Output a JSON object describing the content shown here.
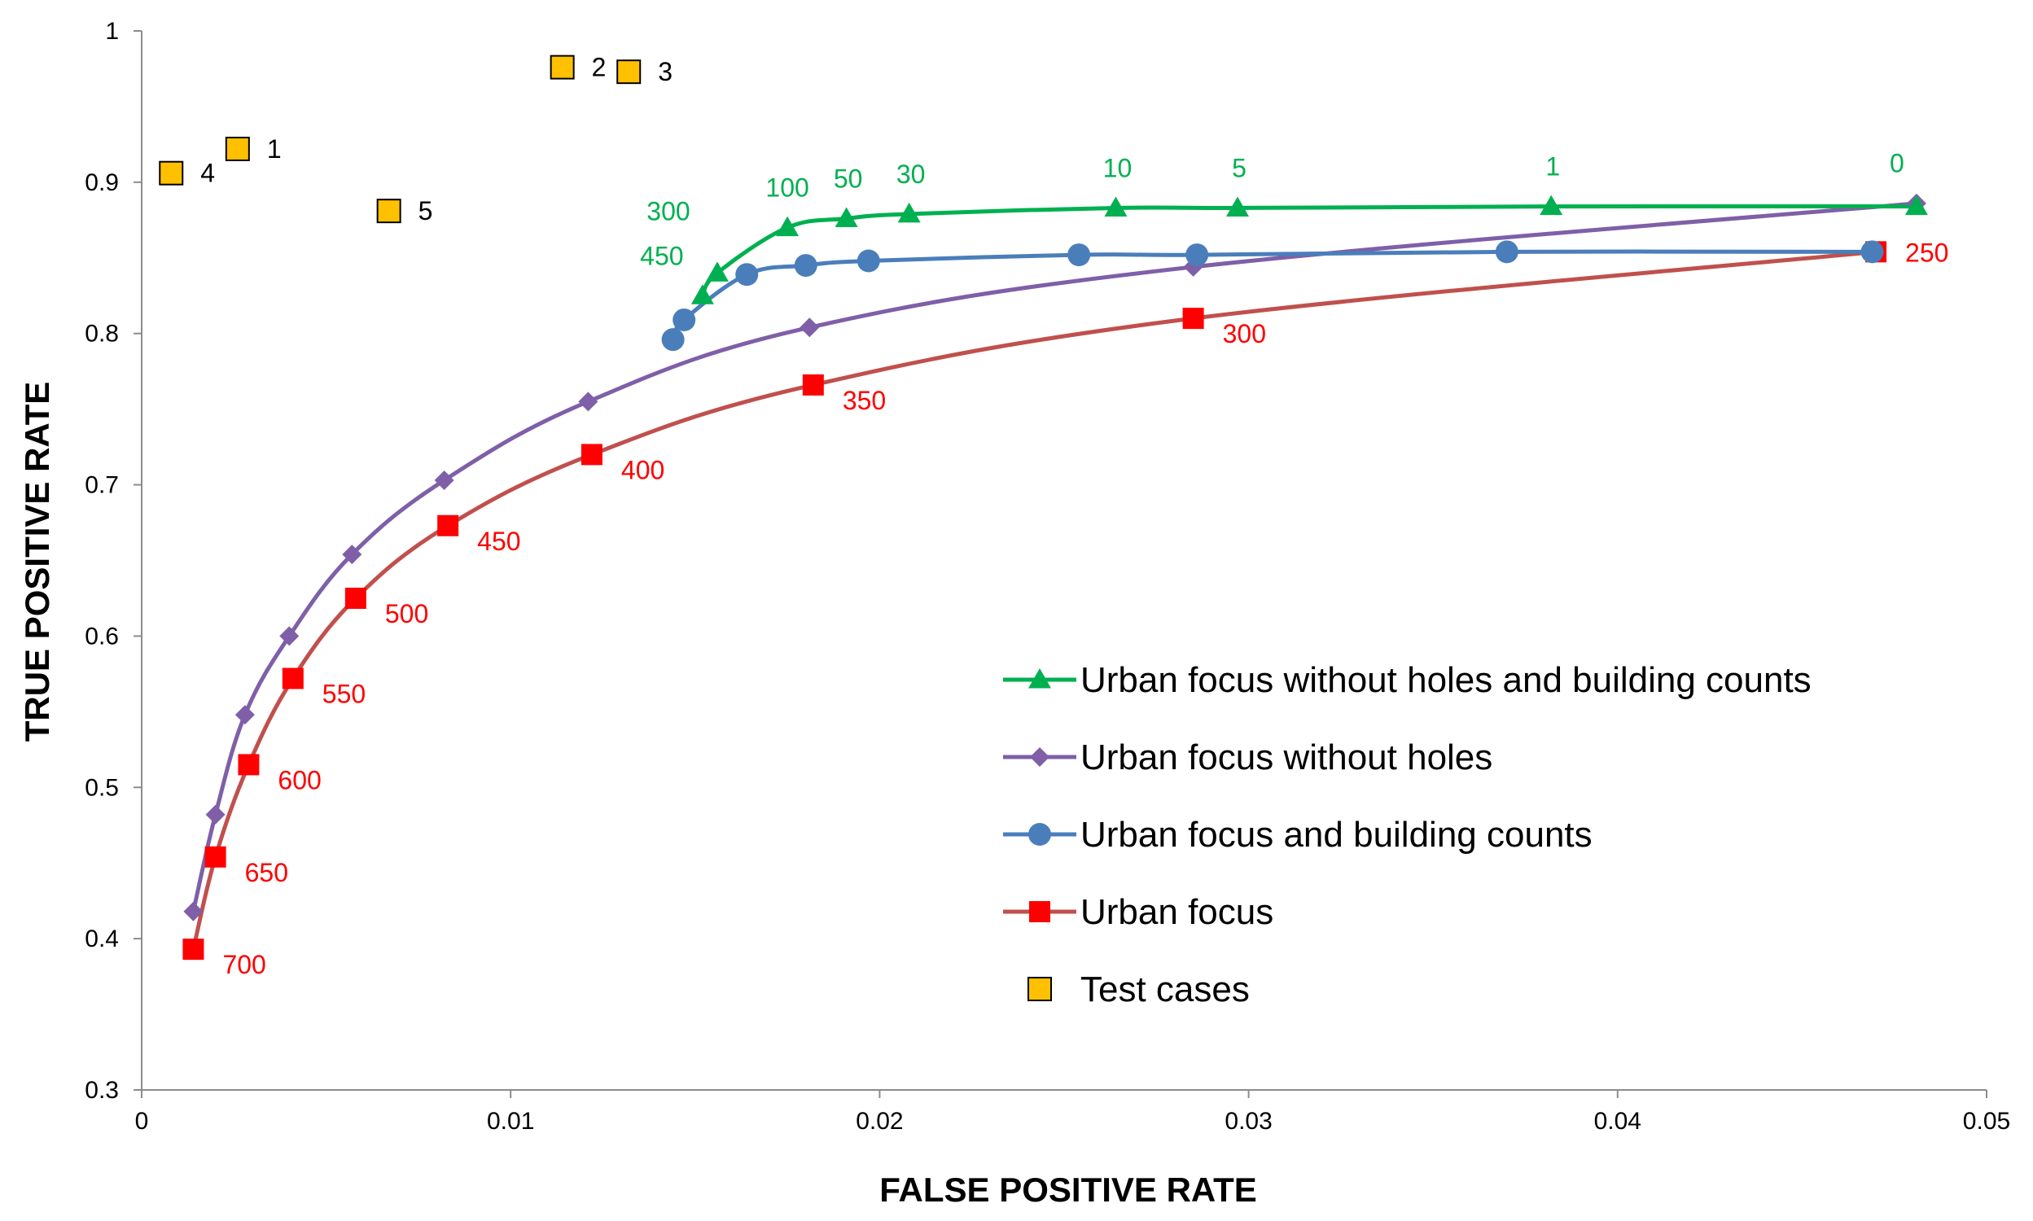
{
  "chart_data": {
    "type": "line",
    "title": "",
    "xlabel": "FALSE POSITIVE RATE",
    "ylabel": "TRUE POSITIVE RATE",
    "xlim": [
      0,
      0.05
    ],
    "ylim": [
      0.3,
      1
    ],
    "x_ticks": [
      0,
      0.01,
      0.02,
      0.03,
      0.04,
      0.05
    ],
    "x_tick_labels": [
      "0",
      "0.01",
      "0.02",
      "0.03",
      "0.04",
      "0.05"
    ],
    "y_ticks": [
      0.3,
      0.4,
      0.5,
      0.6,
      0.7,
      0.8,
      0.9,
      1
    ],
    "y_tick_labels": [
      "0.3",
      "0.4",
      "0.5",
      "0.6",
      "0.7",
      "0.8",
      "0.9",
      "1"
    ],
    "grid": false,
    "legend_position": "bottom-right",
    "series": [
      {
        "name": "Urban focus without holes and building counts",
        "color": "#00b050",
        "marker": "triangle",
        "x": [
          0.0152,
          0.0156,
          0.0175,
          0.0191,
          0.0208,
          0.0264,
          0.0297,
          0.0382,
          0.0481
        ],
        "y": [
          0.825,
          0.84,
          0.87,
          0.876,
          0.879,
          0.883,
          0.883,
          0.884,
          0.884
        ],
        "labels": [
          "450",
          "300",
          "100",
          "50",
          "30",
          "10",
          "5",
          "1",
          "0"
        ]
      },
      {
        "name": "Urban focus without holes",
        "color": "#7f5fa8",
        "marker": "diamond",
        "x": [
          0.0014,
          0.002,
          0.0028,
          0.004,
          0.0057,
          0.0082,
          0.0121,
          0.0181,
          0.0285,
          0.0481
        ],
        "y": [
          0.418,
          0.482,
          0.548,
          0.6,
          0.654,
          0.703,
          0.755,
          0.804,
          0.844,
          0.886
        ],
        "labels": []
      },
      {
        "name": "Urban focus and building counts",
        "color": "#4a7ebb",
        "marker": "circle",
        "x": [
          0.0144,
          0.0147,
          0.0164,
          0.018,
          0.0197,
          0.0254,
          0.0286,
          0.037,
          0.0469
        ],
        "y": [
          0.796,
          0.809,
          0.839,
          0.845,
          0.848,
          0.852,
          0.852,
          0.854,
          0.854
        ],
        "labels": []
      },
      {
        "name": "Urban focus",
        "color": "#c0504d",
        "marker_color": "#ff0000",
        "marker": "square",
        "x": [
          0.0014,
          0.002,
          0.0029,
          0.0041,
          0.0058,
          0.0083,
          0.0122,
          0.0182,
          0.0285,
          0.047
        ],
        "y": [
          0.393,
          0.454,
          0.515,
          0.572,
          0.625,
          0.673,
          0.72,
          0.766,
          0.81,
          0.854
        ],
        "labels": [
          "700",
          "650",
          "600",
          "550",
          "500",
          "450",
          "400",
          "350",
          "300",
          "250"
        ]
      }
    ],
    "test_cases": {
      "name": "Test cases",
      "color": "#ffc000",
      "marker": "square",
      "x": [
        0.0026,
        0.0114,
        0.0132,
        0.0008,
        0.0067
      ],
      "y": [
        0.922,
        0.976,
        0.973,
        0.906,
        0.881
      ],
      "labels": [
        "1",
        "2",
        "3",
        "4",
        "5"
      ]
    }
  }
}
